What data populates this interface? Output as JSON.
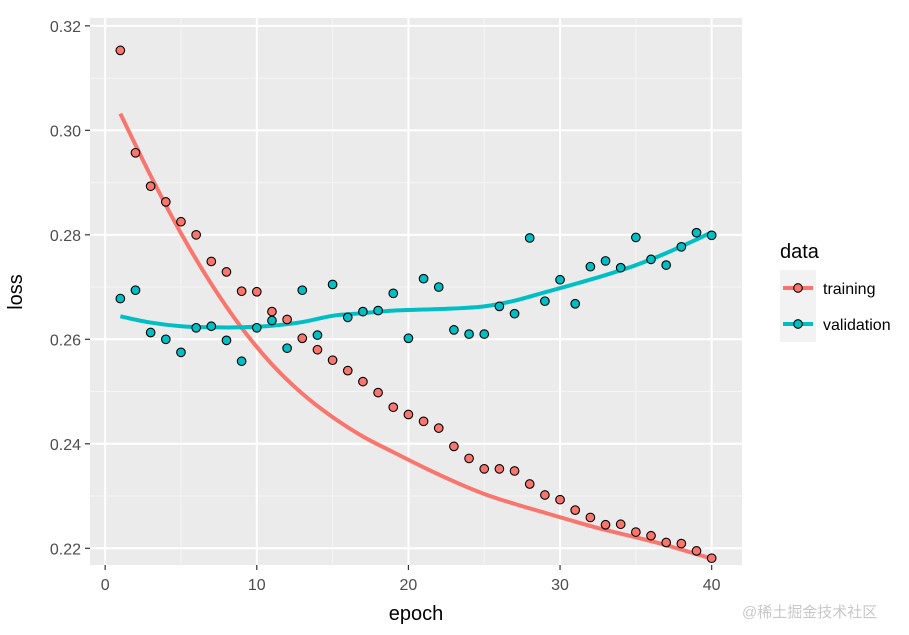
{
  "chart_data": {
    "type": "scatter",
    "title": "",
    "xlabel": "epoch",
    "ylabel": "loss",
    "xlim": [
      -1,
      42
    ],
    "ylim": [
      0.2168,
      0.3215
    ],
    "x_ticks": [
      0,
      10,
      20,
      30,
      40
    ],
    "x_tick_labels": [
      "0",
      "10",
      "20",
      "30",
      "40"
    ],
    "y_ticks": [
      0.22,
      0.24,
      0.26,
      0.28,
      0.3,
      0.32
    ],
    "y_tick_labels": [
      "0.22",
      "0.24",
      "0.26",
      "0.28",
      "0.30",
      "0.32"
    ],
    "grid": true,
    "legend": {
      "title": "data",
      "position": "right"
    },
    "series": [
      {
        "name": "training",
        "color": "#F8766D",
        "x": [
          1,
          2,
          3,
          4,
          5,
          6,
          7,
          8,
          9,
          10,
          11,
          12,
          13,
          14,
          15,
          16,
          17,
          18,
          19,
          20,
          21,
          22,
          23,
          24,
          25,
          26,
          27,
          28,
          29,
          30,
          31,
          32,
          33,
          34,
          35,
          36,
          37,
          38,
          39,
          40
        ],
        "values": [
          0.3153,
          0.2957,
          0.2893,
          0.2863,
          0.2825,
          0.28,
          0.2749,
          0.2729,
          0.2692,
          0.2691,
          0.2653,
          0.2638,
          0.2602,
          0.258,
          0.256,
          0.254,
          0.2519,
          0.2498,
          0.247,
          0.2456,
          0.2443,
          0.243,
          0.2395,
          0.2372,
          0.2352,
          0.2352,
          0.2348,
          0.2323,
          0.2302,
          0.2293,
          0.2273,
          0.2259,
          0.2245,
          0.2246,
          0.2231,
          0.2224,
          0.2211,
          0.2209,
          0.2195,
          0.2181
        ],
        "smooth": [
          [
            1,
            0.3032
          ],
          [
            3,
            0.2913
          ],
          [
            5,
            0.2803
          ],
          [
            7,
            0.2706
          ],
          [
            9,
            0.2622
          ],
          [
            11,
            0.2552
          ],
          [
            13,
            0.2496
          ],
          [
            15,
            0.2451
          ],
          [
            17,
            0.2414
          ],
          [
            19,
            0.2384
          ],
          [
            21,
            0.2355
          ],
          [
            23,
            0.2328
          ],
          [
            25,
            0.2304
          ],
          [
            27,
            0.2285
          ],
          [
            29,
            0.2268
          ],
          [
            31,
            0.2251
          ],
          [
            33,
            0.2235
          ],
          [
            35,
            0.2221
          ],
          [
            37,
            0.2206
          ],
          [
            39,
            0.2189
          ],
          [
            40,
            0.218
          ]
        ]
      },
      {
        "name": "validation",
        "color": "#00BFC4",
        "x": [
          1,
          2,
          3,
          4,
          5,
          6,
          7,
          8,
          9,
          10,
          11,
          12,
          13,
          14,
          15,
          16,
          17,
          18,
          19,
          20,
          21,
          22,
          23,
          24,
          25,
          26,
          27,
          28,
          29,
          30,
          31,
          32,
          33,
          34,
          35,
          36,
          37,
          38,
          39,
          40
        ],
        "values": [
          0.2678,
          0.2694,
          0.2613,
          0.26,
          0.2575,
          0.2622,
          0.2625,
          0.2598,
          0.2558,
          0.2622,
          0.2636,
          0.2583,
          0.2694,
          0.2608,
          0.2705,
          0.2642,
          0.2653,
          0.2655,
          0.2688,
          0.2602,
          0.2716,
          0.27,
          0.2618,
          0.261,
          0.261,
          0.2663,
          0.2649,
          0.2794,
          0.2673,
          0.2714,
          0.2668,
          0.2739,
          0.275,
          0.2737,
          0.2795,
          0.2753,
          0.2742,
          0.2777,
          0.2804,
          0.2799
        ],
        "smooth": [
          [
            1,
            0.2644
          ],
          [
            3,
            0.2632
          ],
          [
            5,
            0.2625
          ],
          [
            7,
            0.2623
          ],
          [
            9,
            0.2623
          ],
          [
            11,
            0.2626
          ],
          [
            13,
            0.2633
          ],
          [
            15,
            0.2645
          ],
          [
            17,
            0.265
          ],
          [
            19,
            0.2655
          ],
          [
            21,
            0.2657
          ],
          [
            23,
            0.2659
          ],
          [
            25,
            0.2663
          ],
          [
            27,
            0.2674
          ],
          [
            29,
            0.269
          ],
          [
            31,
            0.2706
          ],
          [
            33,
            0.2723
          ],
          [
            35,
            0.2742
          ],
          [
            37,
            0.2765
          ],
          [
            39,
            0.2791
          ],
          [
            40,
            0.2805
          ]
        ]
      }
    ]
  },
  "watermark": "@稀土掘金技术社区"
}
